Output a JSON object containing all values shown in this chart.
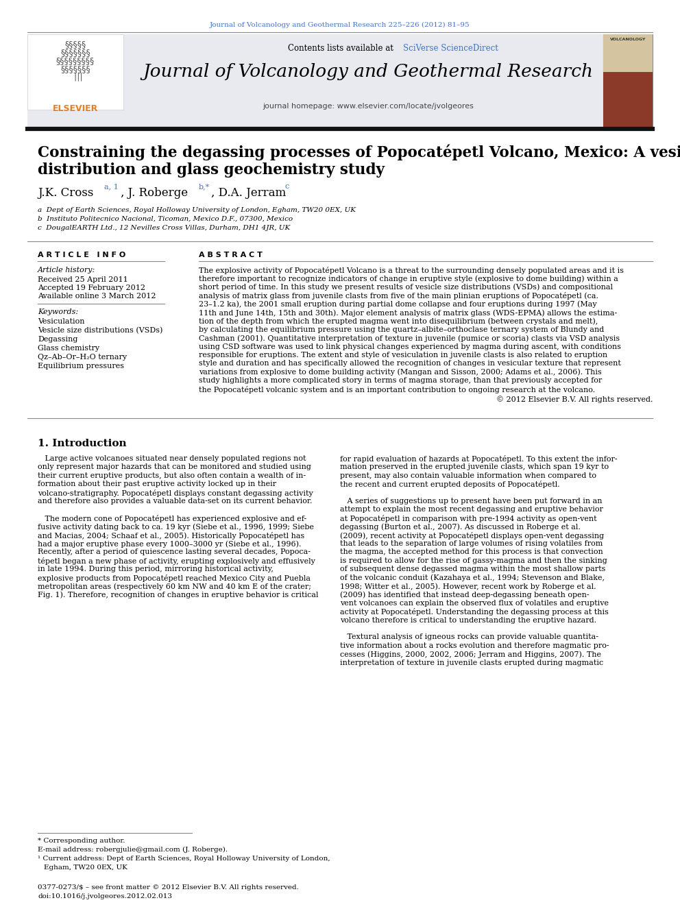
{
  "journal_header_text": "Journal of Volcanology and Geothermal Research 225–226 (2012) 81–95",
  "journal_header_color": "#4472C4",
  "contents_text": "Contents lists available at ",
  "sciverse_text": "SciVerse ScienceDirect",
  "journal_name": "Journal of Volcanology and Geothermal Research",
  "journal_homepage": "journal homepage: www.elsevier.com/locate/jvolgeores",
  "article_title_line1": "Constraining the degassing processes of Popocatépetl Volcano, Mexico: A vesicle size",
  "article_title_line2": "distribution and glass geochemistry study",
  "affiliation_a": "a  Dept of Earth Sciences, Royal Holloway University of London, Egham, TW20 0EX, UK",
  "affiliation_b": "b  Instituto Politecnico Nacional, Ticoman, Mexico D.F., 07300, Mexico",
  "affiliation_c": "c  DougalEARTH Ltd., 12 Nevilles Cross Villas, Durham, DH1 4JR, UK",
  "article_info_header": "A R T I C L E   I N F O",
  "abstract_header": "A B S T R A C T",
  "article_history_label": "Article history:",
  "received": "Received 25 April 2011",
  "accepted": "Accepted 19 February 2012",
  "available": "Available online 3 March 2012",
  "keywords_label": "Keywords:",
  "keywords": [
    "Vesiculation",
    "Vesicle size distributions (VSDs)",
    "Degassing",
    "Glass chemistry",
    "Qz–Ab–Or–H₂O ternary",
    "Equilibrium pressures"
  ],
  "abstract_lines": [
    "The explosive activity of Popocatépetl Volcano is a threat to the surrounding densely populated areas and it is",
    "therefore important to recognize indicators of change in eruptive style (explosive to dome building) within a",
    "short period of time. In this study we present results of vesicle size distributions (VSDs) and compositional",
    "analysis of matrix glass from juvenile clasts from five of the main plinian eruptions of Popocatépetl (ca.",
    "23–1.2 ka), the 2001 small eruption during partial dome collapse and four eruptions during 1997 (May",
    "11th and June 14th, 15th and 30th). Major element analysis of matrix glass (WDS-EPMA) allows the estima-",
    "tion of the depth from which the erupted magma went into disequilibrium (between crystals and melt),",
    "by calculating the equilibrium pressure using the quartz–albite–orthoclase ternary system of Blundy and",
    "Cashman (2001). Quantitative interpretation of texture in juvenile (pumice or scoria) clasts via VSD analysis",
    "using CSD software was used to link physical changes experienced by magma during ascent, with conditions",
    "responsible for eruptions. The extent and style of vesiculation in juvenile clasts is also related to eruption",
    "style and duration and has specifically allowed the recognition of changes in vesicular texture that represent",
    "variations from explosive to dome building activity (Mangan and Sisson, 2000; Adams et al., 2006). This",
    "study highlights a more complicated story in terms of magma storage, than that previously accepted for",
    "the Popocatépetl volcanic system and is an important contribution to ongoing research at the volcano."
  ],
  "copyright": "© 2012 Elsevier B.V. All rights reserved.",
  "section1_title": "1. Introduction",
  "col1_lines": [
    "   Large active volcanoes situated near densely populated regions not",
    "only represent major hazards that can be monitored and studied using",
    "their current eruptive products, but also often contain a wealth of in-",
    "formation about their past eruptive activity locked up in their",
    "volcano-stratigraphy. Popocatépetl displays constant degassing activity",
    "and therefore also provides a valuable data-set on its current behavior.",
    "",
    "   The modern cone of Popocatépetl has experienced explosive and ef-",
    "fusive activity dating back to ca. 19 kyr (Siebe et al., 1996, 1999; Siebe",
    "and Macias, 2004; Schaaf et al., 2005). Historically Popocatépetl has",
    "had a major eruptive phase every 1000–3000 yr (Siebe et al., 1996).",
    "Recently, after a period of quiescence lasting several decades, Popoca-",
    "tépetl began a new phase of activity, erupting explosively and effusively",
    "in late 1994. During this period, mirroring historical activity,",
    "explosive products from Popocatépetl reached Mexico City and Puebla",
    "metropolitan areas (respectively 60 km NW and 40 km E of the crater;",
    "Fig. 1). Therefore, recognition of changes in eruptive behavior is critical"
  ],
  "col2_lines": [
    "for rapid evaluation of hazards at Popocatépetl. To this extent the infor-",
    "mation preserved in the erupted juvenile clasts, which span 19 kyr to",
    "present, may also contain valuable information when compared to",
    "the recent and current erupted deposits of Popocatépetl.",
    "",
    "   A series of suggestions up to present have been put forward in an",
    "attempt to explain the most recent degassing and eruptive behavior",
    "at Popocatépetl in comparison with pre-1994 activity as open-vent",
    "degassing (Burton et al., 2007). As discussed in Roberge et al.",
    "(2009), recent activity at Popocatépetl displays open-vent degassing",
    "that leads to the separation of large volumes of rising volatiles from",
    "the magma, the accepted method for this process is that convection",
    "is required to allow for the rise of gassy-magma and then the sinking",
    "of subsequent dense degassed magma within the most shallow parts",
    "of the volcanic conduit (Kazahaya et al., 1994; Stevenson and Blake,",
    "1998; Witter et al., 2005). However, recent work by Roberge et al.",
    "(2009) has identified that instead deep-degassing beneath open-",
    "vent volcanoes can explain the observed flux of volatiles and eruptive",
    "activity at Popocatépetl. Understanding the degassing process at this",
    "volcano therefore is critical to understanding the eruptive hazard.",
    "",
    "   Textural analysis of igneous rocks can provide valuable quantita-",
    "tive information about a rocks evolution and therefore magmatic pro-",
    "cesses (Higgins, 2000, 2002, 2006; Jerram and Higgins, 2007). The",
    "interpretation of texture in juvenile clasts erupted during magmatic"
  ],
  "footnote_star": "* Corresponding author.",
  "footnote_email": "E-mail address: robergjulie@gmail.com (J. Roberge).",
  "footnote_1a": "¹ Current address: Dept of Earth Sciences, Royal Holloway University of London,",
  "footnote_1b": "Egham, TW20 0EX, UK",
  "footer_issn": "0377-0273/$ – see front matter © 2012 Elsevier B.V. All rights reserved.",
  "footer_doi": "doi:10.1016/j.jvolgeores.2012.02.013",
  "bg_color": "#ffffff",
  "header_bg_color": "#e8eaf0",
  "text_color": "#000000",
  "link_color": "#4472C4",
  "elsevier_color": "#e67e22"
}
